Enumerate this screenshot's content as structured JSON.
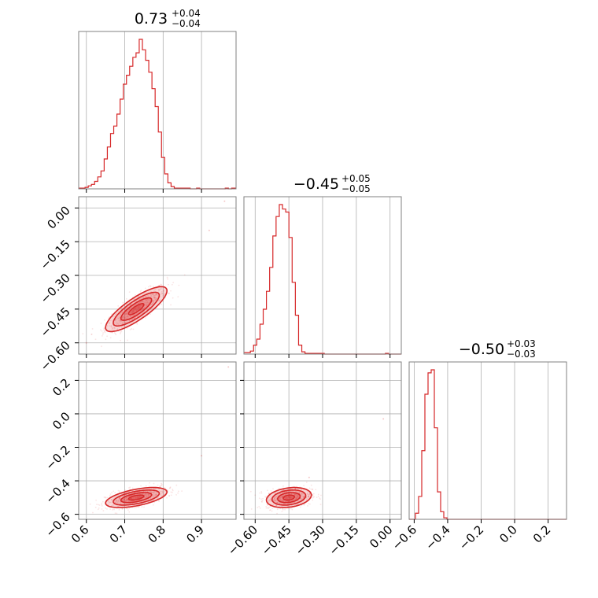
{
  "chart_data": {
    "type": "corner",
    "color": "#d62728",
    "grid": true,
    "parameters": [
      {
        "title_value": "0.73",
        "title_plus": "+0.04",
        "title_minus": "−0.04",
        "range": [
          0.58,
          0.99
        ],
        "ticks": [
          0.6,
          0.7,
          0.8,
          0.9
        ],
        "tick_labels": [
          "0.6",
          "0.7",
          "0.8",
          "0.9"
        ],
        "hist": {
          "bins": [
            0.58,
            0.5883,
            0.5966,
            0.6049,
            0.6132,
            0.6215,
            0.6298,
            0.6381,
            0.6464,
            0.6547,
            0.663,
            0.6713,
            0.6796,
            0.6879,
            0.6962,
            0.7045,
            0.7128,
            0.7211,
            0.7294,
            0.7377,
            0.746,
            0.7543,
            0.7626,
            0.7709,
            0.7792,
            0.7875,
            0.7958,
            0.8041,
            0.8124,
            0.8207,
            0.829,
            0.8373,
            0.8456,
            0.8539,
            0.8622,
            0.8705,
            0.8788,
            0.8871,
            0.8954,
            0.9037,
            0.912,
            0.9203,
            0.9286,
            0.9369,
            0.9452,
            0.9535,
            0.9618,
            0.9701,
            0.9784,
            0.99
          ],
          "heights": [
            0.005,
            0.005,
            0.01,
            0.02,
            0.03,
            0.05,
            0.08,
            0.12,
            0.2,
            0.28,
            0.37,
            0.42,
            0.5,
            0.6,
            0.7,
            0.76,
            0.82,
            0.88,
            0.91,
            1.0,
            0.93,
            0.86,
            0.78,
            0.67,
            0.55,
            0.38,
            0.21,
            0.1,
            0.04,
            0.015,
            0.005,
            0.005,
            0.005,
            0.005,
            0.005,
            0.0,
            0.0,
            0.005,
            0.0,
            0.0,
            0.0,
            0.0,
            0.0,
            0.0,
            0.0,
            0.0,
            0.005,
            0.0,
            0.005
          ]
        }
      },
      {
        "title_value": "−0.45",
        "title_plus": "+0.05",
        "title_minus": "−0.05",
        "range": [
          -0.65,
          0.05
        ],
        "ticks": [
          0.0,
          -0.15,
          -0.3,
          -0.45,
          -0.6
        ],
        "tick_labels": [
          "0.00",
          "−0.15",
          "−0.30",
          "−0.45",
          "−0.60"
        ],
        "hist": {
          "bins": [
            -0.65,
            -0.6357,
            -0.6214,
            -0.6071,
            -0.5928,
            -0.5785,
            -0.5642,
            -0.5499,
            -0.5356,
            -0.5213,
            -0.507,
            -0.4927,
            -0.4784,
            -0.4641,
            -0.4498,
            -0.4355,
            -0.4212,
            -0.4069,
            -0.3926,
            -0.3783,
            -0.364,
            -0.3497,
            -0.3354,
            -0.3211,
            -0.3068,
            -0.2925,
            -0.2782,
            -0.2639,
            -0.2496,
            -0.2353,
            -0.221,
            -0.2067,
            -0.1924,
            -0.1781,
            -0.1638,
            -0.1495,
            -0.1352,
            -0.1209,
            -0.1066,
            -0.0923,
            -0.078,
            -0.0637,
            -0.0494,
            -0.0351,
            -0.0208,
            -0.0065,
            0.05
          ],
          "heights": [
            0.01,
            0.01,
            0.02,
            0.06,
            0.1,
            0.2,
            0.3,
            0.42,
            0.58,
            0.79,
            0.92,
            1.0,
            0.97,
            0.95,
            0.78,
            0.48,
            0.26,
            0.06,
            0.015,
            0.005,
            0.005,
            0.005,
            0.005,
            0.005,
            0.005,
            0.0,
            0.0,
            0.0,
            0.0,
            0.0,
            0.0,
            0.0,
            0.0,
            0.0,
            0.0,
            0.0,
            0.0,
            0.0,
            0.0,
            0.0,
            0.0,
            0.0,
            0.0,
            0.0,
            0.005,
            0.0
          ]
        }
      },
      {
        "title_value": "−0.50",
        "title_plus": "+0.03",
        "title_minus": "−0.03",
        "range": [
          -0.63,
          0.31
        ],
        "ticks": [
          0.2,
          0.0,
          -0.2,
          -0.4,
          -0.6
        ],
        "tick_labels": [
          "0.2",
          "0.0",
          "−0.2",
          "−0.4",
          "−0.6"
        ],
        "hist": {
          "bins": [
            -0.63,
            -0.6112,
            -0.5924,
            -0.5736,
            -0.5548,
            -0.536,
            -0.5172,
            -0.4984,
            -0.4796,
            -0.4608,
            -0.442,
            -0.4232,
            -0.4044,
            0.31
          ],
          "heights": [
            0.0,
            0.0,
            0.04,
            0.15,
            0.45,
            0.82,
            0.96,
            0.98,
            0.6,
            0.18,
            0.05,
            0.01,
            0.0
          ]
        }
      }
    ],
    "pairs": [
      {
        "x_param": 0,
        "y_param": 1,
        "mean": [
          0.73,
          -0.45
        ],
        "sd": [
          0.04,
          0.05
        ],
        "rho": 0.82,
        "scatter_outliers": [
          [
            0.96,
            0.03
          ],
          [
            0.6,
            -0.6
          ],
          [
            0.92,
            -0.1
          ]
        ]
      },
      {
        "x_param": 0,
        "y_param": 2,
        "mean": [
          0.73,
          -0.5
        ],
        "sd": [
          0.04,
          0.03
        ],
        "rho": 0.55,
        "scatter_outliers": [
          [
            0.97,
            0.28
          ],
          [
            0.9,
            -0.25
          ]
        ]
      },
      {
        "x_param": 1,
        "y_param": 2,
        "mean": [
          -0.45,
          -0.5
        ],
        "sd": [
          0.05,
          0.03
        ],
        "rho": 0.25,
        "scatter_outliers": [
          [
            -0.03,
            -0.03
          ],
          [
            -0.36,
            -0.38
          ]
        ]
      }
    ]
  }
}
